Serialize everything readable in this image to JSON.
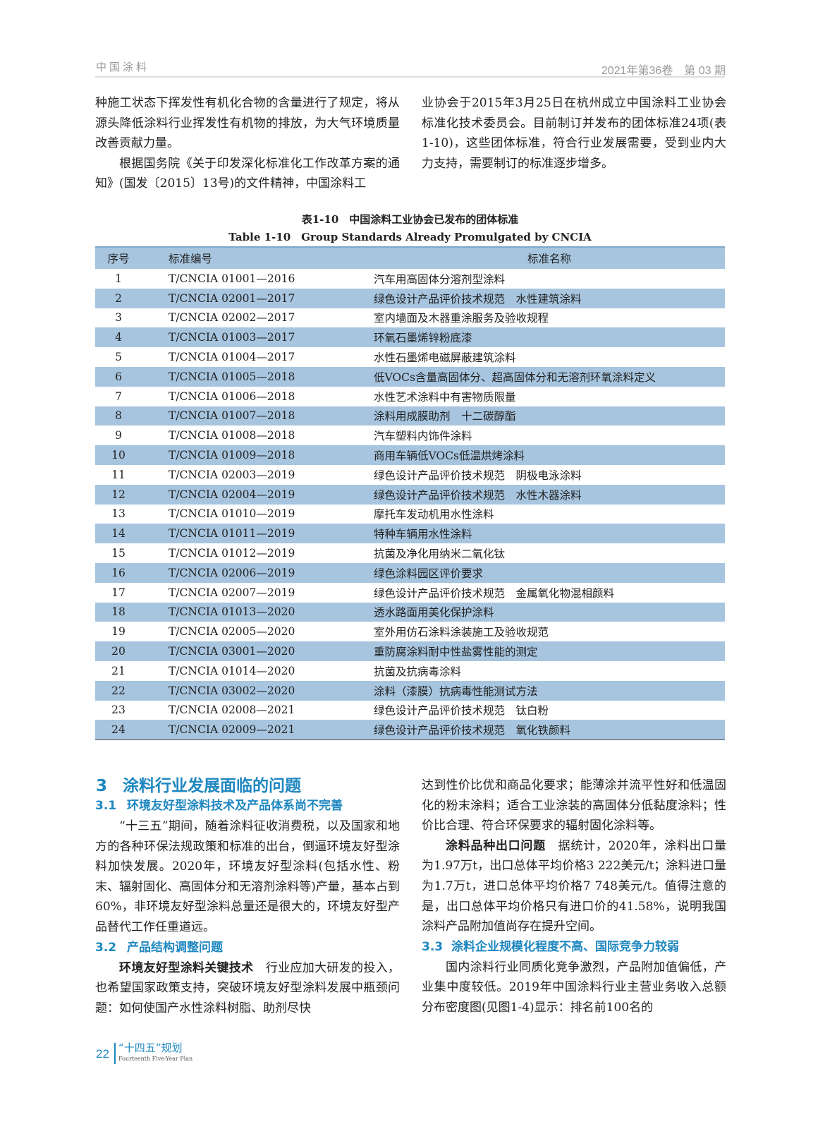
{
  "header": {
    "journal": "中国涂料",
    "issue": "2021年第36卷　第 03 期"
  },
  "top_left": [
    "种施工状态下挥发性有机化合物的含量进行了规定，将从源头降低涂料行业挥发性有机物的排放，为大气环境质量改善贡献力量。",
    "根据国务院《关于印发深化标准化工作改革方案的通知》(国发〔2015〕13号)的文件精神，中国涂料工"
  ],
  "top_right": [
    "业协会于2015年3月25日在杭州成立中国涂料工业协会标准化技术委员会。目前制订并发布的团体标准24项(表1-10)，这些团体标准，符合行业发展需要，受到业内大力支持，需要制订的标准逐步增多。"
  ],
  "table": {
    "caption_cn": "表1-10　中国涂料工业协会已发布的团体标准",
    "caption_en": "Table 1-10　Group Standards Already Promulgated by CNCIA",
    "headers": [
      "序号",
      "标准编号",
      "标准名称"
    ],
    "rows": [
      [
        "1",
        "T/CNCIA 01001—2016",
        "汽车用高固体分溶剂型涂料"
      ],
      [
        "2",
        "T/CNCIA 02001—2017",
        "绿色设计产品评价技术规范　水性建筑涂料"
      ],
      [
        "3",
        "T/CNCIA 02002—2017",
        "室内墙面及木器重涂服务及验收规程"
      ],
      [
        "4",
        "T/CNCIA 01003—2017",
        "环氧石墨烯锌粉底漆"
      ],
      [
        "5",
        "T/CNCIA 01004—2017",
        "水性石墨烯电磁屏蔽建筑涂料"
      ],
      [
        "6",
        "T/CNCIA 01005—2018",
        "低VOCs含量高固体分、超高固体分和无溶剂环氧涂料定义"
      ],
      [
        "7",
        "T/CNCIA 01006—2018",
        "水性艺术涂料中有害物质限量"
      ],
      [
        "8",
        "T/CNCIA 01007—2018",
        "涂料用成膜助剂　十二碳醇酯"
      ],
      [
        "9",
        "T/CNCIA 01008—2018",
        "汽车塑料内饰件涂料"
      ],
      [
        "10",
        "T/CNCIA 01009—2018",
        "商用车辆低VOCs低温烘烤涂料"
      ],
      [
        "11",
        "T/CNCIA 02003—2019",
        "绿色设计产品评价技术规范　阴极电泳涂料"
      ],
      [
        "12",
        "T/CNCIA 02004—2019",
        "绿色设计产品评价技术规范　水性木器涂料"
      ],
      [
        "13",
        "T/CNCIA 01010—2019",
        "摩托车发动机用水性涂料"
      ],
      [
        "14",
        "T/CNCIA 01011—2019",
        "特种车辆用水性涂料"
      ],
      [
        "15",
        "T/CNCIA 01012—2019",
        "抗菌及净化用纳米二氧化钛"
      ],
      [
        "16",
        "T/CNCIA 02006—2019",
        "绿色涂料园区评价要求"
      ],
      [
        "17",
        "T/CNCIA 02007—2019",
        "绿色设计产品评价技术规范　金属氧化物混相颜料"
      ],
      [
        "18",
        "T/CNCIA 01013—2020",
        "透水路面用美化保护涂料"
      ],
      [
        "19",
        "T/CNCIA 02005—2020",
        "室外用仿石涂料涂装施工及验收规范"
      ],
      [
        "20",
        "T/CNCIA 03001—2020",
        "重防腐涂料耐中性盐雾性能的测定"
      ],
      [
        "21",
        "T/CNCIA 01014—2020",
        "抗菌及抗病毒涂料"
      ],
      [
        "22",
        "T/CNCIA 03002—2020",
        "涂料（漆膜）抗病毒性能测试方法"
      ],
      [
        "23",
        "T/CNCIA 02008—2021",
        "绿色设计产品评价技术规范　钛白粉"
      ],
      [
        "24",
        "T/CNCIA 02009—2021",
        "绿色设计产品评价技术规范　氧化铁颜料"
      ]
    ]
  },
  "section3": {
    "num": "3",
    "title": "涂料行业发展面临的问题",
    "s31_num": "3.1",
    "s31_title": "环境友好型涂料技术及产品体系尚不完善",
    "s31_text": "“十三五”期间，随着涂料征收消费税，以及国家和地方的各种环保法规政策和标准的出台，倒逼环境友好型涂料加快发展。2020年，环境友好型涂料(包括水性、粉末、辐射固化、高固体分和无溶剂涂料等)产量，基本占到60%，非环境友好型涂料总量还是很大的，环境友好型产品替代工作任重道远。",
    "s32_num": "3.2",
    "s32_title": "产品结构调整问题",
    "s32_lead": "环境友好型涂料关键技术",
    "s32_text": "行业应加大研发的投入，也希望国家政策支持，突破环境友好型涂料发展中瓶颈问题：如何使国产水性涂料树脂、助剂尽快",
    "right_cont": "达到性价比优和商品化要求；能薄涂并流平性好和低温固化的粉末涂料；适合工业涂装的高固体分低黏度涂料；性价比合理、符合环保要求的辐射固化涂料等。",
    "export_lead": "涂料品种出口问题",
    "export_text": "据统计，2020年，涂料出口量为1.97万t，出口总体平均价格3 222美元/t；涂料进口量为1.7万t，进口总体平均价格7 748美元/t。值得注意的是，出口总体平均价格只有进口价的41.58%，说明我国涂料产品附加值尚存在提升空间。",
    "s33_num": "3.3",
    "s33_title": "涂料企业规模化程度不高、国际竞争力较弱",
    "s33_text": "国内涂料行业同质化竞争激烈，产品附加值偏低，产业集中度较低。2019年中国涂料行业主营业务收入总额分布密度图(见图1-4)显示：排名前100名的"
  },
  "footer": {
    "page": "22",
    "title": "“十四五”规划",
    "subtitle": "Fourteenth Five-Year Plan"
  },
  "colors": {
    "accent": "#1e87c0",
    "row_band": "#a7c5df"
  }
}
